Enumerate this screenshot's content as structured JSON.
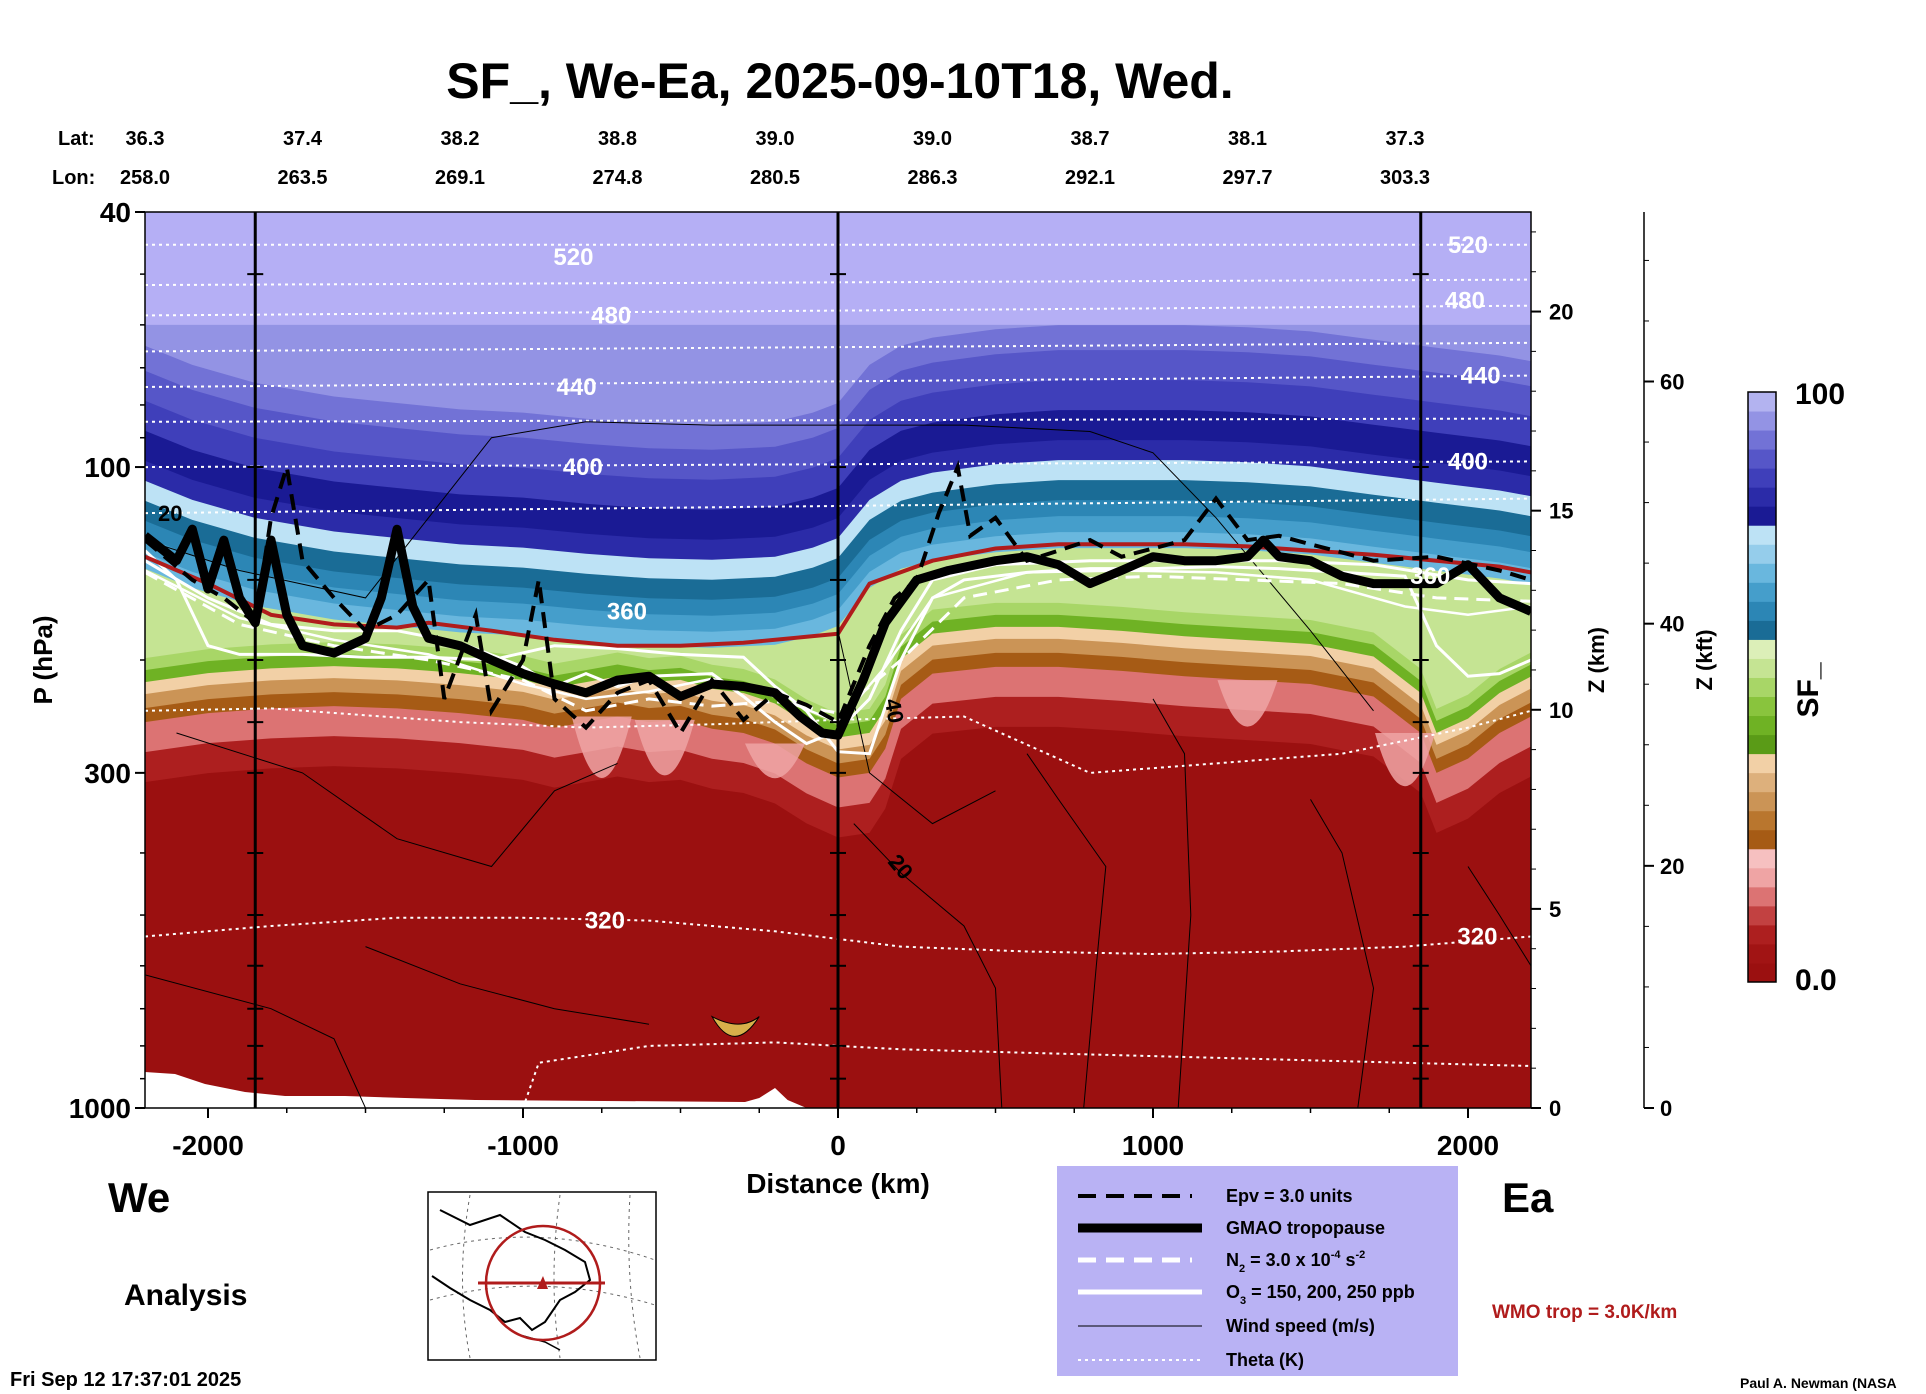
{
  "chart_data": {
    "type": "heatmap",
    "title": "SF_, We-Ea, 2025-09-10T18, Wed.",
    "xlabel": "Distance (km)",
    "ylabel": "P (hPa)",
    "xlim": [
      -2200,
      2200
    ],
    "x_ticks": [
      "-2000",
      "-1000",
      "0",
      "1000",
      "2000"
    ],
    "x_tick_values": [
      -2000,
      -1000,
      0,
      1000,
      2000
    ],
    "y_ticks": [
      "40",
      "100",
      "300",
      "1000"
    ],
    "y_tick_values": [
      40,
      100,
      300,
      1000
    ],
    "z_km_label": "Z (km)",
    "z_km_ticks": [
      "20",
      "15",
      "10",
      "5",
      "0"
    ],
    "z_km_values": [
      20,
      15,
      10,
      5,
      0
    ],
    "z_kft_label": "Z (kft)",
    "z_kft_ticks": [
      "60",
      "40",
      "20",
      "0"
    ],
    "z_kft_values": [
      60,
      40,
      20,
      0
    ],
    "lat_label": "Lat:",
    "lon_label": "Lon:",
    "lat_values": [
      "36.3",
      "37.4",
      "38.2",
      "38.8",
      "39.0",
      "39.0",
      "38.7",
      "38.1",
      "37.3"
    ],
    "lon_values": [
      "258.0",
      "263.5",
      "269.1",
      "274.8",
      "280.5",
      "286.3",
      "292.1",
      "297.7",
      "303.3"
    ],
    "latlon_distances": [
      -2200,
      -1700,
      -1200,
      -700,
      -200,
      300,
      800,
      1300,
      1800
    ],
    "vertical_markers": [
      -1850,
      0,
      1850
    ],
    "theta_labels": [
      {
        "text": "520",
        "x": -840,
        "p": 47
      },
      {
        "text": "480",
        "x": -720,
        "p": 58
      },
      {
        "text": "440",
        "x": -830,
        "p": 75
      },
      {
        "text": "400",
        "x": -810,
        "p": 100
      },
      {
        "text": "360",
        "x": -670,
        "p": 168
      },
      {
        "text": "320",
        "x": -740,
        "p": 510
      },
      {
        "text": "520",
        "x": 2000,
        "p": 45
      },
      {
        "text": "480",
        "x": 1990,
        "p": 55
      },
      {
        "text": "440",
        "x": 2040,
        "p": 72
      },
      {
        "text": "400",
        "x": 2000,
        "p": 98
      },
      {
        "text": "360",
        "x": 1880,
        "p": 148
      },
      {
        "text": "320",
        "x": 2030,
        "p": 540
      }
    ],
    "wind_labels": [
      {
        "text": "20",
        "x": -2120,
        "p": 118
      },
      {
        "text": "40",
        "x": 180,
        "p": 240
      },
      {
        "text": "20",
        "x": 200,
        "p": 420
      }
    ],
    "colorbar": {
      "label": "SF_",
      "min_label": "0.0",
      "max_label": "100",
      "colors": [
        "#9b1010",
        "#a11414",
        "#ad1f1f",
        "#c24141",
        "#dc7373",
        "#efa4a4",
        "#f6c0c0",
        "#a65b15",
        "#b9762e",
        "#cb9456",
        "#ddb07c",
        "#f2d0a6",
        "#5a9b17",
        "#6fb224",
        "#89c43d",
        "#a8d667",
        "#c5e493",
        "#dcefb8",
        "#1a6c96",
        "#2c86b5",
        "#459ecb",
        "#69b7de",
        "#95cdeb",
        "#bde2f5",
        "#1a1a94",
        "#2b2ba8",
        "#3f3fba",
        "#5656c8",
        "#7272d6",
        "#9393e4",
        "#b3b3f0"
      ]
    },
    "legend": {
      "entries": [
        "Epv = 3.0 units",
        "GMAO tropopause",
        "N",
        "O",
        "Wind speed (m/s)",
        "Theta (K)"
      ],
      "n2_parts": [
        "N",
        "2",
        " = 3.0 x 10",
        "-4",
        " s",
        "-2"
      ],
      "o3_parts": [
        "O",
        "3",
        " = 150, 200, 250 ppb"
      ]
    },
    "left_label": "We",
    "right_label": "Ea",
    "mode_label": "Analysis",
    "wmo_label": "WMO trop = 3.0K/km",
    "footer_date": "Fri Sep 12 17:37:01 2025",
    "footer_author": "Paul A. Newman (NASA"
  },
  "colors": {
    "stratosphere": "#b5aff5",
    "troposphere": "#9b1010",
    "legend_bg": "#b9b2f4",
    "wmo": "#b01c1c"
  }
}
